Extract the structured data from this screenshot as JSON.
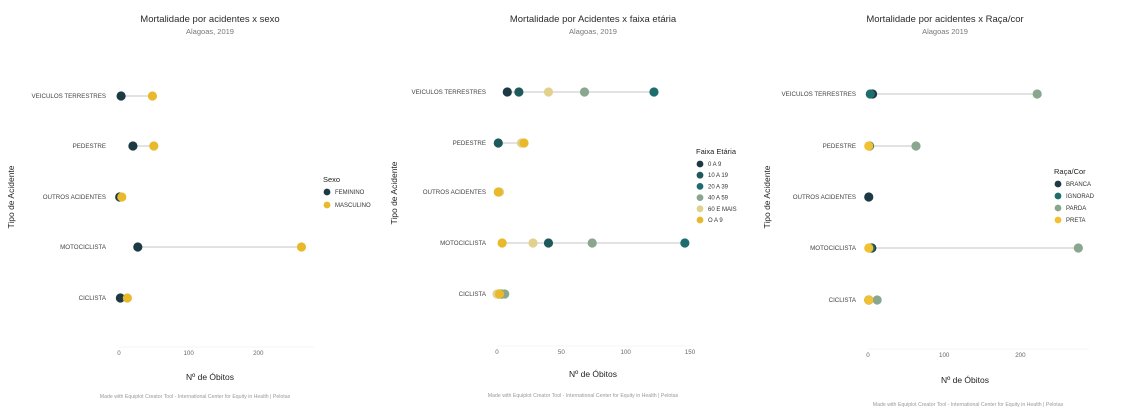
{
  "colors": {
    "line": "#d9d9d9",
    "c1": "#1d3a44",
    "c2": "#1e6d6e",
    "c3": "#89a68f",
    "c4": "#e2d18c",
    "c5": "#e8b92a",
    "c6": "#f2c030"
  },
  "chart_data": [
    {
      "type": "dumbbell",
      "title": "Mortalidade por acidentes x sexo",
      "subtitle": "Alagoas, 2019",
      "xlabel": "Nº de Óbitos",
      "ylabel": "Tipo de Acidente",
      "xlim": [
        0,
        280
      ],
      "xticks": [
        0,
        100,
        200
      ],
      "categories": [
        "VEICULOS TERRESTRES",
        "PEDESTRE",
        "OUTROS ACIDENTES",
        "MOTOCICLISTA",
        "CICLISTA"
      ],
      "legend_title": "Sexo",
      "series": [
        {
          "name": "FEMININO",
          "color": "#1d3a44",
          "values": [
            3,
            20,
            1,
            27,
            2
          ]
        },
        {
          "name": "MASCULINO",
          "color": "#e8b92a",
          "values": [
            48,
            50,
            4,
            262,
            12
          ]
        }
      ],
      "credit": "Made with Equiplot Creator Tool - International Center for Equity in Health | Pelotas"
    },
    {
      "type": "dumbbell",
      "title": "Mortalidade por Acidentes x faixa etária",
      "subtitle": "Alagoas, 2019",
      "xlabel": "Nº de Óbitos",
      "ylabel": "Tipo de Acidente",
      "xlim": [
        0,
        150
      ],
      "xticks": [
        0,
        50,
        100,
        150
      ],
      "categories": [
        "VEICULOS TERRESTRES",
        "PEDESTRE",
        "OUTROS ACIDENTES",
        "MOTOCICLISTA",
        "CICLISTA"
      ],
      "legend_title": "Faixa Etária",
      "series": [
        {
          "name": "0 A 9",
          "color": "#1d3a44",
          "values": [
            8,
            null,
            null,
            null,
            1
          ]
        },
        {
          "name": "10 A 19",
          "color": "#1e5a5c",
          "values": [
            17,
            1,
            null,
            40,
            3
          ]
        },
        {
          "name": "20 A 39",
          "color": "#1e6d6e",
          "values": [
            122,
            null,
            null,
            146,
            null
          ]
        },
        {
          "name": "40 A 59",
          "color": "#89a68f",
          "values": [
            68,
            null,
            null,
            74,
            6
          ]
        },
        {
          "name": "60 E MAIS",
          "color": "#e2d18c",
          "values": [
            40,
            19,
            2,
            28,
            0
          ]
        },
        {
          "name": "O A 9",
          "color": "#e8b92a",
          "values": [
            null,
            21,
            1,
            4,
            2
          ]
        }
      ],
      "credit": "Made with Equiplot Creator Tool - International Center for Equity in Health | Pelotas"
    },
    {
      "type": "dumbbell",
      "title": "Mortalidade por acidentes x Raça/cor",
      "subtitle": "Alagoas 2019",
      "xlabel": "Nº de Óbitos",
      "ylabel": "Tipo de Acidente",
      "xlim": [
        0,
        290
      ],
      "xticks": [
        0,
        100,
        200
      ],
      "categories": [
        "VEICULOS TERRESTRES",
        "PEDESTRE",
        "OUTROS ACIDENTES",
        "MOTOCICLISTA",
        "CICLISTA"
      ],
      "legend_title": "Raça/Cor",
      "series": [
        {
          "name": "BRANCA",
          "color": "#1d3a44",
          "values": [
            6,
            null,
            1,
            5,
            1
          ]
        },
        {
          "name": "IGNORAD",
          "color": "#1e6d6e",
          "values": [
            3,
            2,
            null,
            3,
            null
          ]
        },
        {
          "name": "PARDA",
          "color": "#89a68f",
          "values": [
            222,
            63,
            null,
            276,
            12
          ]
        },
        {
          "name": "PRETA",
          "color": "#f2c030",
          "values": [
            null,
            1,
            null,
            1,
            1
          ]
        }
      ],
      "credit": "Made with Equiplot Creator Tool - International Center for Equity in Health | Pelotas"
    }
  ]
}
